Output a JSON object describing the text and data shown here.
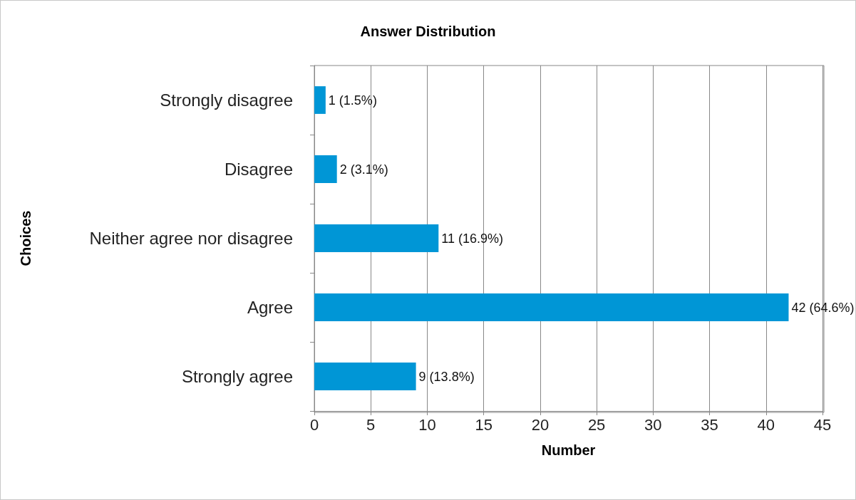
{
  "chart_data": {
    "type": "bar",
    "orientation": "horizontal",
    "title": "Answer Distribution",
    "xlabel": "Number",
    "ylabel": "Choices",
    "categories": [
      "Strongly disagree",
      "Disagree",
      "Neither agree nor disagree",
      "Agree",
      "Strongly agree"
    ],
    "values": [
      1,
      2,
      11,
      42,
      9
    ],
    "value_labels": [
      "1 (1.5%)",
      "2 (3.1%)",
      "11 (16.9%)",
      "42 (64.6%)",
      "9 (13.8%)"
    ],
    "color": "#0096d6",
    "xlim": [
      0,
      45
    ],
    "xticks": [
      0,
      5,
      10,
      15,
      20,
      25,
      30,
      35,
      40,
      45
    ],
    "grid": "x"
  }
}
